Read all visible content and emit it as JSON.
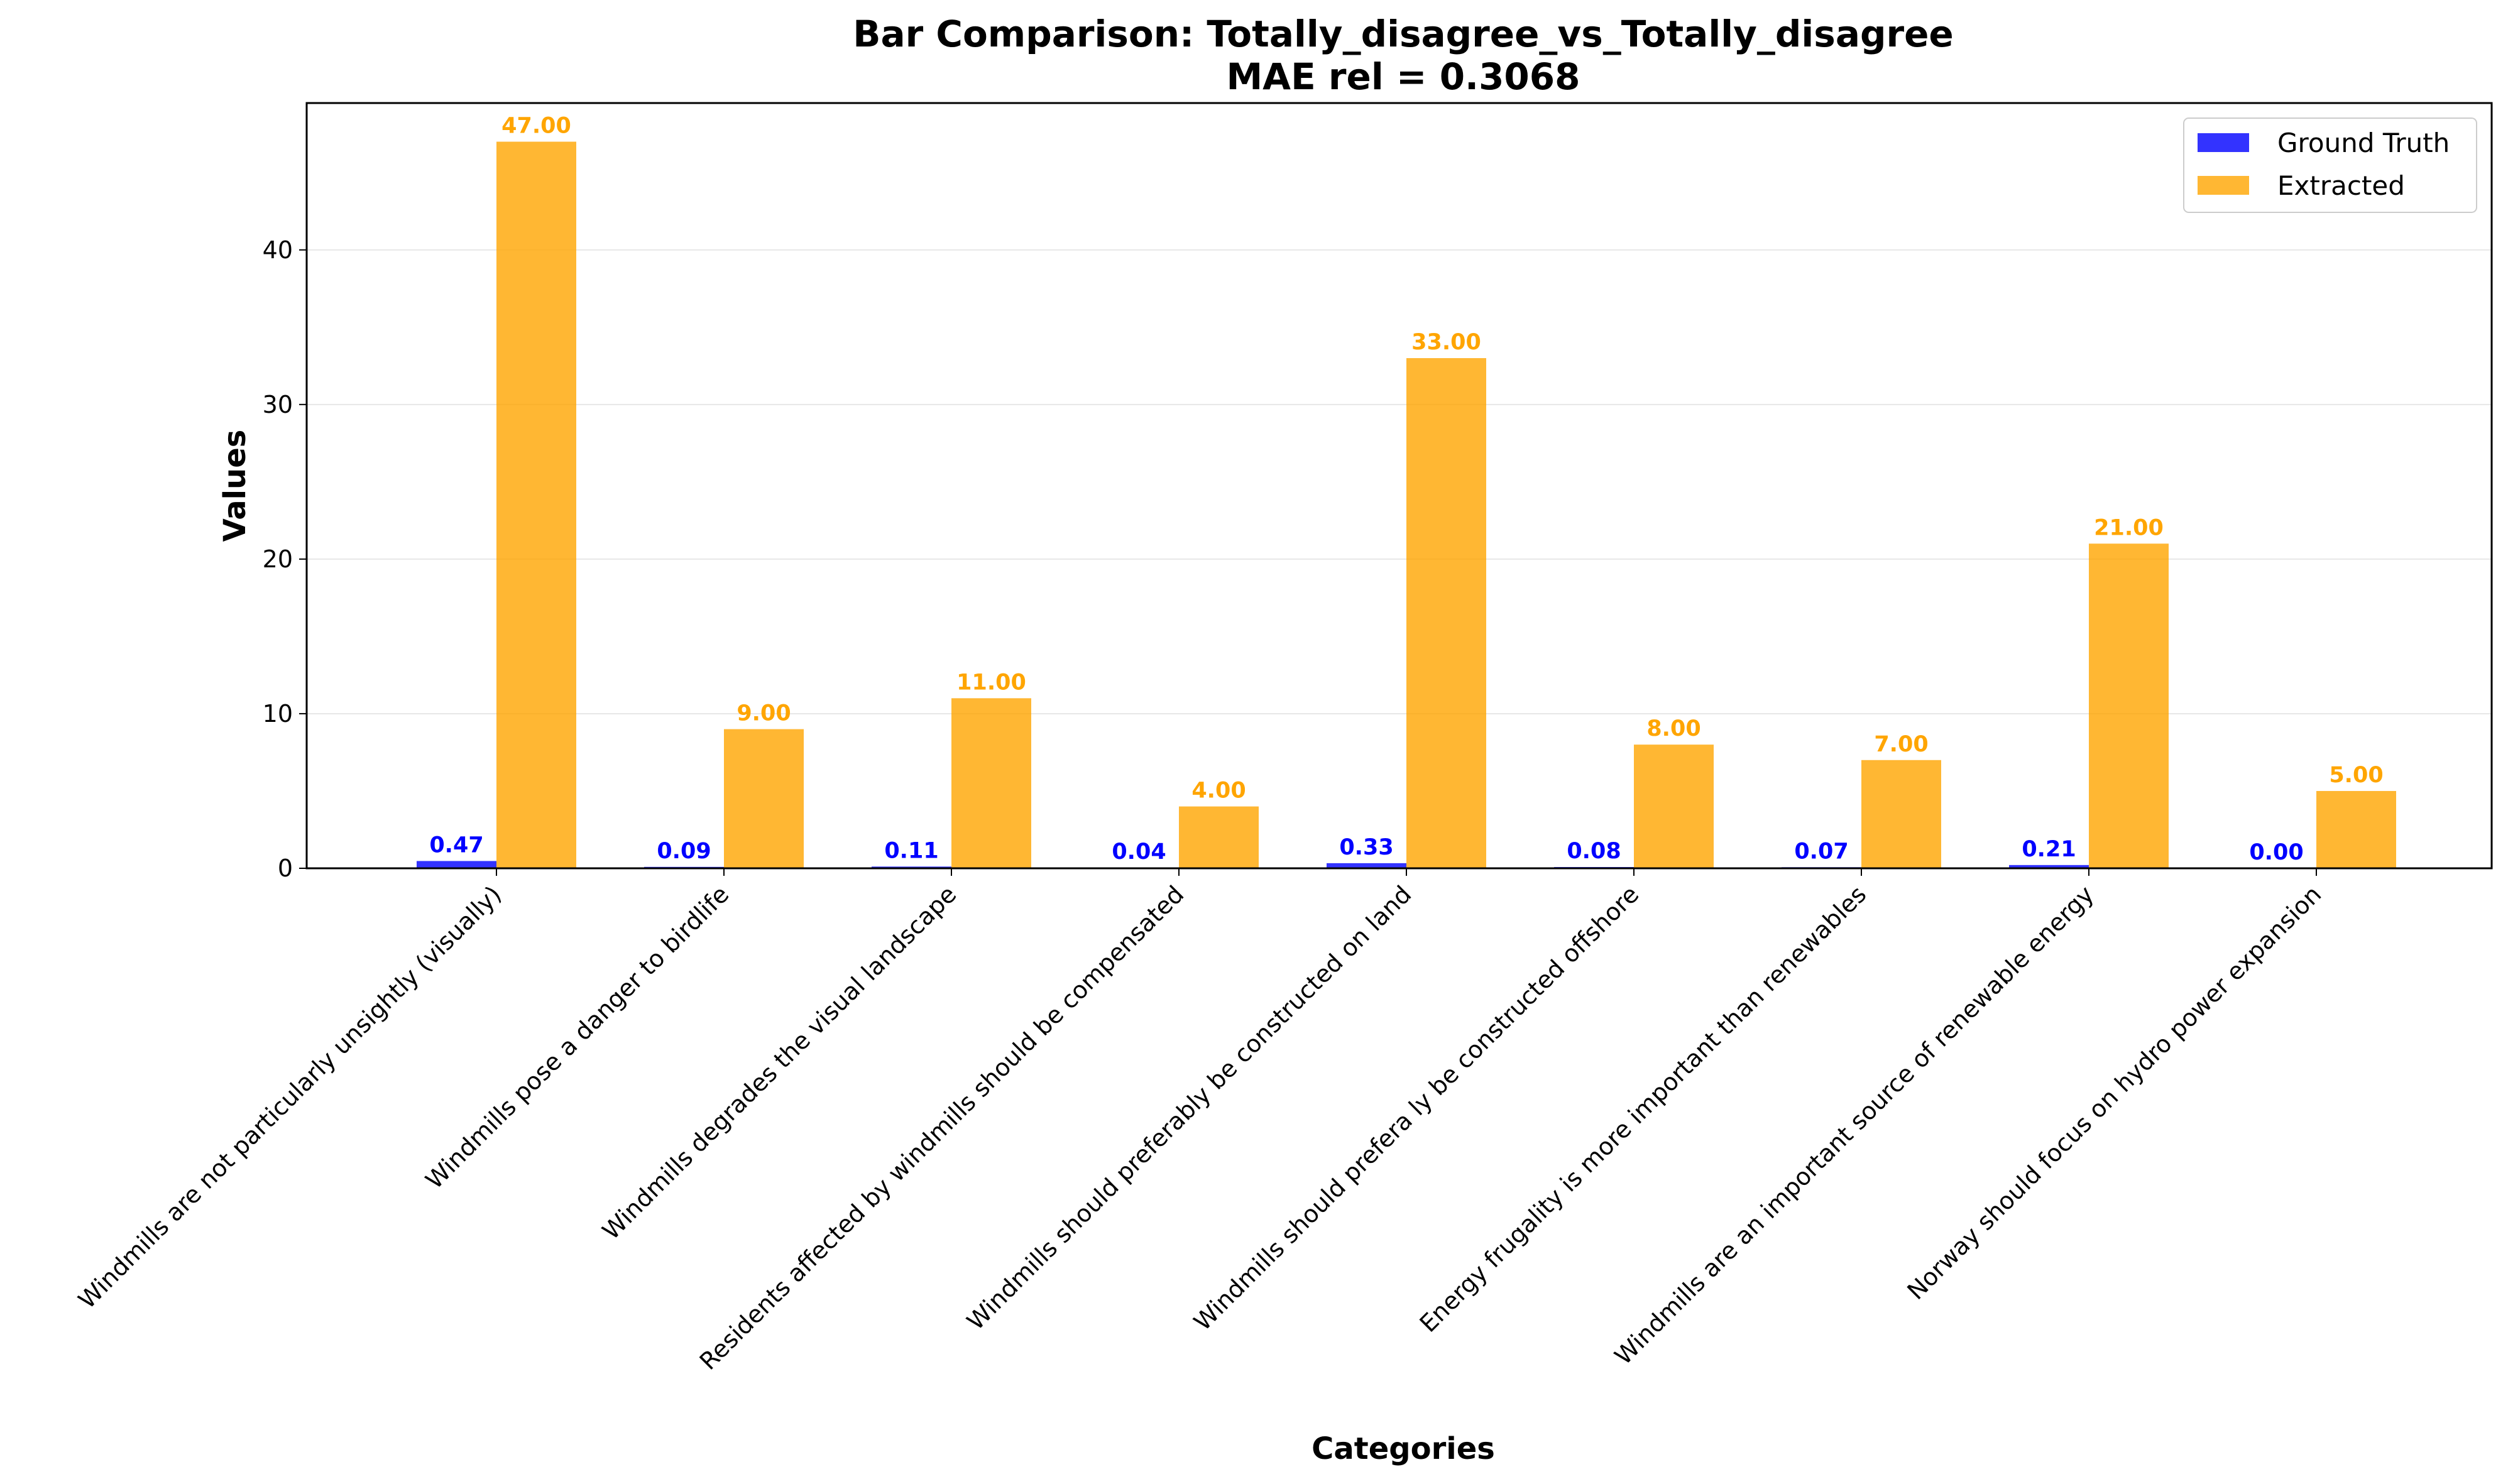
{
  "chart_data": {
    "type": "bar",
    "title": "Bar Comparison: Totally_disagree_vs_Totally_disagree",
    "subtitle": "MAE rel = 0.3068",
    "xlabel": "Categories",
    "ylabel": "Values",
    "ylim": [
      0,
      49.5
    ],
    "yticks": [
      0,
      10,
      20,
      30,
      40
    ],
    "grid": "y",
    "legend_position": "top-right",
    "categories": [
      "Windmills are not particularly unsightly (visually)",
      "Windmills pose a danger to birdlife",
      "Windmills degrades the visual landscape",
      "Residents affected by windmills should be compensated",
      "Windmills should preferably be constructed on land",
      "Windmills should prefera ly be constructed offshore",
      "Energy frugality is more important than renewables",
      "Windmills are an important source of renewable energy",
      "Norway should focus on hydro power expansion"
    ],
    "series": [
      {
        "name": "Ground Truth",
        "color": "#0000ff",
        "values": [
          0.47,
          0.09,
          0.11,
          0.04,
          0.33,
          0.08,
          0.07,
          0.21,
          0.0
        ],
        "labels": [
          "0.47",
          "0.09",
          "0.11",
          "0.04",
          "0.33",
          "0.08",
          "0.07",
          "0.21",
          "0.00"
        ]
      },
      {
        "name": "Extracted",
        "color": "#ffa500",
        "values": [
          47,
          9,
          11,
          4,
          33,
          8,
          7,
          21,
          5
        ],
        "labels": [
          "47.00",
          "9.00",
          "11.00",
          "4.00",
          "33.00",
          "8.00",
          "7.00",
          "21.00",
          "5.00"
        ]
      }
    ]
  }
}
